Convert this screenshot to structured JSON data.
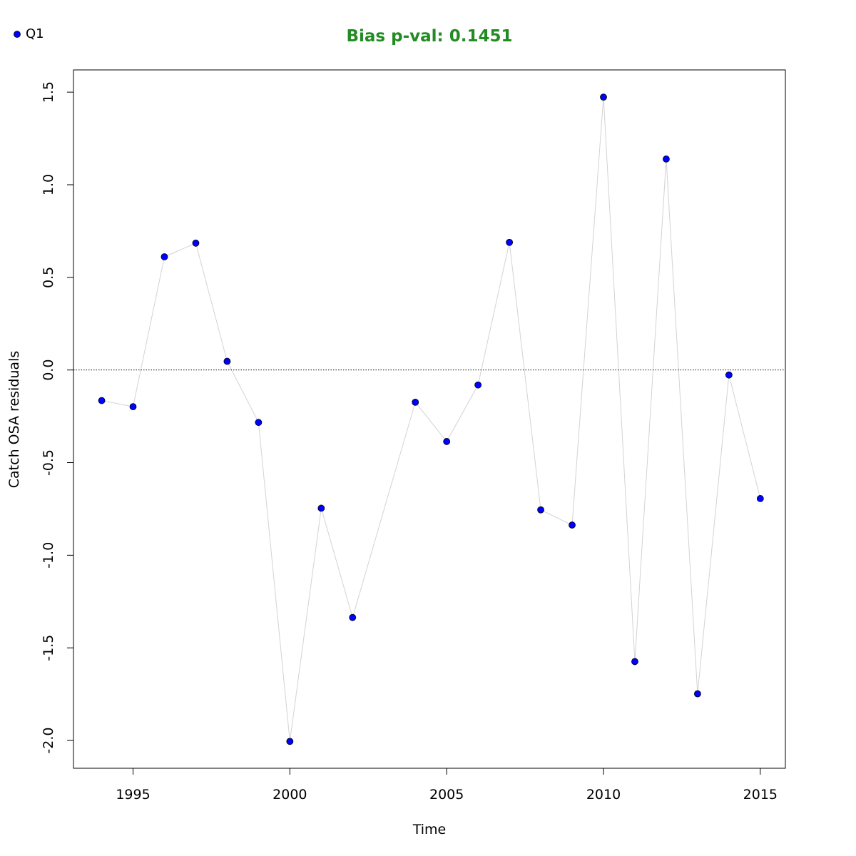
{
  "chart_data": {
    "type": "scatter",
    "title": "Bias p-val: 0.1451",
    "title_color": "#228B22",
    "xlabel": "Time",
    "ylabel": "Catch OSA residuals",
    "xlim": [
      1993.1,
      2015.8
    ],
    "ylim": [
      -2.15,
      1.62
    ],
    "x_ticks": [
      "1995",
      "2000",
      "2005",
      "2010",
      "2015"
    ],
    "y_ticks": [
      "-2.0",
      "-1.5",
      "-1.0",
      "-0.5",
      "0.0",
      "0.5",
      "1.0",
      "1.5"
    ],
    "reference_line": 0,
    "grid": false,
    "legend_position": "top-left",
    "connector_color": "#d3d3d3",
    "point_color": "#0000ff",
    "series": [
      {
        "name": "Q1",
        "x": [
          1994,
          1995,
          1996,
          1997,
          1998,
          1999,
          2000,
          2001,
          2002,
          2004,
          2005,
          2006,
          2007,
          2008,
          2009,
          2010,
          2011,
          2012,
          2013,
          2014,
          2015
        ],
        "y": [
          -0.165,
          -0.198,
          0.611,
          0.685,
          0.047,
          -0.283,
          -2.005,
          -0.746,
          -1.336,
          -0.174,
          -0.386,
          -0.081,
          0.689,
          -0.755,
          -0.837,
          1.473,
          -1.574,
          1.139,
          -1.748,
          -0.027,
          -0.694
        ]
      }
    ]
  }
}
